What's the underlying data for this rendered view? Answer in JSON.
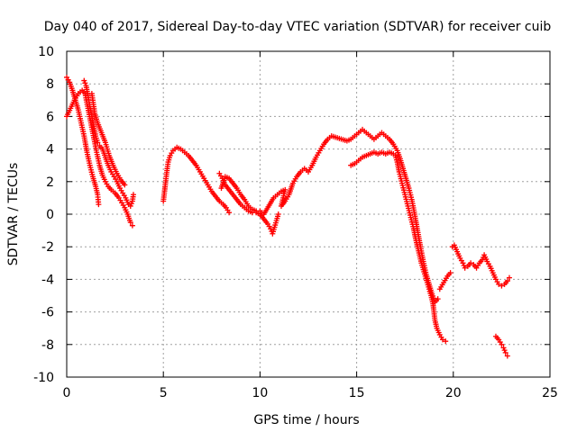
{
  "chart_data": {
    "type": "scatter",
    "title": "Day 040 of 2017, Sidereal Day-to-day VTEC variation (SDTVAR) for receiver cuib",
    "xlabel": "GPS time / hours",
    "ylabel": "SDTVAR / TECUs",
    "xlim": [
      0,
      25
    ],
    "ylim": [
      -10,
      10
    ],
    "xticks": [
      "0",
      "5",
      "10",
      "15",
      "20",
      "25"
    ],
    "yticks": [
      "-10",
      "-8",
      "-6",
      "-4",
      "-2",
      "0",
      "2",
      "4",
      "6",
      "8",
      "10"
    ],
    "grid": true,
    "marker": "plus",
    "color": "#ff0000",
    "series": [
      {
        "values": [
          [
            0.0,
            8.4
          ],
          [
            0.15,
            8.1
          ],
          [
            0.3,
            7.6
          ],
          [
            0.45,
            7.0
          ],
          [
            0.6,
            6.4
          ],
          [
            0.75,
            5.6
          ],
          [
            0.9,
            4.8
          ],
          [
            1.05,
            3.8
          ],
          [
            1.2,
            3.0
          ],
          [
            1.35,
            2.3
          ],
          [
            1.5,
            1.7
          ],
          [
            1.6,
            1.2
          ],
          [
            1.65,
            0.6
          ],
          [
            0.0,
            6.0
          ],
          [
            0.2,
            6.5
          ],
          [
            0.4,
            7.0
          ],
          [
            0.6,
            7.4
          ],
          [
            0.8,
            7.6
          ],
          [
            0.95,
            7.4
          ],
          [
            1.1,
            6.5
          ],
          [
            1.25,
            5.6
          ],
          [
            1.4,
            4.7
          ],
          [
            1.55,
            3.8
          ],
          [
            1.7,
            3.0
          ],
          [
            1.85,
            2.4
          ],
          [
            2.0,
            2.0
          ],
          [
            2.15,
            1.7
          ],
          [
            2.3,
            1.5
          ],
          [
            2.5,
            1.3
          ],
          [
            2.7,
            1.0
          ],
          [
            2.85,
            0.7
          ],
          [
            3.0,
            0.4
          ],
          [
            3.15,
            0.0
          ],
          [
            3.3,
            -0.5
          ],
          [
            3.4,
            -0.7
          ],
          [
            0.9,
            8.2
          ],
          [
            1.0,
            7.9
          ],
          [
            1.1,
            7.3
          ],
          [
            1.2,
            6.6
          ],
          [
            1.3,
            6.0
          ],
          [
            1.4,
            5.4
          ],
          [
            1.5,
            4.8
          ],
          [
            1.6,
            4.4
          ],
          [
            1.7,
            4.2
          ],
          [
            1.85,
            4.0
          ],
          [
            2.0,
            3.5
          ],
          [
            2.15,
            3.0
          ],
          [
            2.3,
            2.6
          ],
          [
            2.45,
            2.3
          ],
          [
            2.6,
            2.0
          ],
          [
            2.75,
            1.6
          ],
          [
            2.9,
            1.3
          ],
          [
            3.05,
            1.0
          ],
          [
            3.2,
            0.6
          ],
          [
            3.3,
            0.5
          ],
          [
            3.4,
            0.8
          ],
          [
            3.45,
            1.2
          ],
          [
            1.3,
            7.4
          ],
          [
            1.45,
            6.2
          ],
          [
            1.6,
            5.6
          ],
          [
            1.8,
            5.0
          ],
          [
            2.0,
            4.4
          ],
          [
            2.2,
            3.6
          ],
          [
            2.4,
            3.0
          ],
          [
            2.6,
            2.5
          ],
          [
            2.8,
            2.1
          ],
          [
            3.0,
            1.8
          ],
          [
            5.0,
            0.8
          ],
          [
            5.05,
            1.3
          ],
          [
            5.1,
            1.8
          ],
          [
            5.15,
            2.3
          ],
          [
            5.2,
            2.8
          ],
          [
            5.25,
            3.2
          ],
          [
            5.35,
            3.6
          ],
          [
            5.5,
            3.9
          ],
          [
            5.7,
            4.1
          ],
          [
            5.9,
            4.0
          ],
          [
            6.1,
            3.8
          ],
          [
            6.3,
            3.6
          ],
          [
            6.5,
            3.3
          ],
          [
            6.7,
            3.0
          ],
          [
            6.9,
            2.6
          ],
          [
            7.1,
            2.2
          ],
          [
            7.3,
            1.8
          ],
          [
            7.5,
            1.4
          ],
          [
            7.7,
            1.1
          ],
          [
            7.9,
            0.8
          ],
          [
            8.1,
            0.6
          ],
          [
            8.25,
            0.4
          ],
          [
            8.4,
            0.1
          ],
          [
            7.9,
            2.5
          ],
          [
            8.05,
            2.2
          ],
          [
            8.2,
            1.8
          ],
          [
            8.4,
            1.5
          ],
          [
            8.6,
            1.2
          ],
          [
            8.8,
            0.9
          ],
          [
            9.0,
            0.6
          ],
          [
            9.2,
            0.4
          ],
          [
            9.4,
            0.2
          ],
          [
            9.6,
            0.1
          ],
          [
            9.8,
            0.1
          ],
          [
            10.0,
            0.0
          ],
          [
            10.2,
            -0.3
          ],
          [
            10.4,
            -0.6
          ],
          [
            10.55,
            -0.9
          ],
          [
            10.65,
            -1.2
          ],
          [
            10.75,
            -0.8
          ],
          [
            10.85,
            -0.4
          ],
          [
            10.95,
            0.0
          ],
          [
            8.0,
            1.6
          ],
          [
            8.2,
            2.3
          ],
          [
            8.4,
            2.2
          ],
          [
            8.6,
            1.9
          ],
          [
            8.8,
            1.6
          ],
          [
            9.0,
            1.2
          ],
          [
            9.2,
            0.9
          ],
          [
            9.4,
            0.5
          ],
          [
            9.6,
            0.3
          ],
          [
            9.8,
            0.2
          ],
          [
            10.0,
            0.2
          ],
          [
            10.2,
            0.0
          ],
          [
            10.7,
            1.0
          ],
          [
            10.9,
            1.2
          ],
          [
            11.1,
            1.4
          ],
          [
            11.3,
            1.5
          ],
          [
            11.1,
            0.5
          ],
          [
            11.3,
            0.8
          ],
          [
            11.5,
            1.2
          ],
          [
            11.7,
            1.9
          ],
          [
            11.9,
            2.3
          ],
          [
            12.1,
            2.6
          ],
          [
            12.3,
            2.8
          ],
          [
            12.5,
            2.6
          ],
          [
            12.7,
            3.0
          ],
          [
            12.9,
            3.5
          ],
          [
            13.1,
            3.9
          ],
          [
            13.3,
            4.3
          ],
          [
            13.5,
            4.6
          ],
          [
            13.7,
            4.8
          ],
          [
            14.5,
            4.5
          ],
          [
            14.7,
            4.6
          ],
          [
            14.9,
            4.8
          ],
          [
            15.1,
            5.0
          ],
          [
            15.3,
            5.2
          ],
          [
            15.5,
            5.0
          ],
          [
            15.7,
            4.8
          ],
          [
            15.9,
            4.6
          ],
          [
            16.1,
            4.8
          ],
          [
            16.3,
            5.0
          ],
          [
            16.5,
            4.8
          ],
          [
            16.7,
            4.6
          ],
          [
            16.9,
            4.3
          ],
          [
            17.1,
            3.9
          ],
          [
            17.25,
            3.4
          ],
          [
            17.4,
            2.8
          ],
          [
            17.55,
            2.2
          ],
          [
            17.7,
            1.6
          ],
          [
            17.85,
            0.9
          ],
          [
            18.0,
            0.0
          ],
          [
            18.15,
            -1.0
          ],
          [
            18.3,
            -2.0
          ],
          [
            18.45,
            -2.9
          ],
          [
            18.6,
            -3.7
          ],
          [
            18.75,
            -4.3
          ],
          [
            18.9,
            -4.9
          ],
          [
            19.05,
            -5.4
          ],
          [
            19.2,
            -5.2
          ],
          [
            14.7,
            3.0
          ],
          [
            14.9,
            3.1
          ],
          [
            15.1,
            3.3
          ],
          [
            15.3,
            3.5
          ],
          [
            15.5,
            3.6
          ],
          [
            15.7,
            3.7
          ],
          [
            15.9,
            3.8
          ],
          [
            16.1,
            3.7
          ],
          [
            16.3,
            3.8
          ],
          [
            16.5,
            3.7
          ],
          [
            16.7,
            3.8
          ],
          [
            16.9,
            3.7
          ],
          [
            17.0,
            3.6
          ],
          [
            17.1,
            3.2
          ],
          [
            17.2,
            2.6
          ],
          [
            17.35,
            1.9
          ],
          [
            17.5,
            1.2
          ],
          [
            17.65,
            0.5
          ],
          [
            17.8,
            -0.2
          ],
          [
            17.95,
            -0.9
          ],
          [
            18.05,
            -1.5
          ],
          [
            18.15,
            -2.0
          ],
          [
            18.25,
            -2.5
          ],
          [
            18.35,
            -3.0
          ],
          [
            18.45,
            -3.4
          ],
          [
            18.55,
            -3.8
          ],
          [
            18.65,
            -4.2
          ],
          [
            18.75,
            -4.6
          ],
          [
            18.85,
            -5.0
          ],
          [
            18.95,
            -5.5
          ],
          [
            19.0,
            -6.0
          ],
          [
            19.05,
            -6.5
          ],
          [
            19.15,
            -7.0
          ],
          [
            19.3,
            -7.4
          ],
          [
            19.45,
            -7.7
          ],
          [
            19.6,
            -7.8
          ],
          [
            19.3,
            -4.6
          ],
          [
            19.5,
            -4.2
          ],
          [
            19.7,
            -3.8
          ],
          [
            19.85,
            -3.6
          ],
          [
            19.95,
            -2.0
          ],
          [
            20.05,
            -1.9
          ],
          [
            20.2,
            -2.3
          ],
          [
            20.35,
            -2.7
          ],
          [
            20.5,
            -3.0
          ],
          [
            20.6,
            -3.3
          ],
          [
            20.75,
            -3.2
          ],
          [
            20.9,
            -3.0
          ],
          [
            21.05,
            -3.1
          ],
          [
            21.2,
            -3.3
          ],
          [
            21.35,
            -3.0
          ],
          [
            21.5,
            -2.8
          ],
          [
            21.6,
            -2.5
          ],
          [
            21.75,
            -2.9
          ],
          [
            21.9,
            -3.2
          ],
          [
            22.05,
            -3.6
          ],
          [
            22.2,
            -4.0
          ],
          [
            22.35,
            -4.3
          ],
          [
            22.5,
            -4.4
          ],
          [
            22.65,
            -4.3
          ],
          [
            22.8,
            -4.1
          ],
          [
            22.9,
            -3.9
          ],
          [
            22.2,
            -7.5
          ],
          [
            22.35,
            -7.7
          ],
          [
            22.5,
            -8.0
          ],
          [
            22.6,
            -8.2
          ],
          [
            22.7,
            -8.5
          ],
          [
            22.8,
            -8.7
          ]
        ]
      }
    ]
  }
}
